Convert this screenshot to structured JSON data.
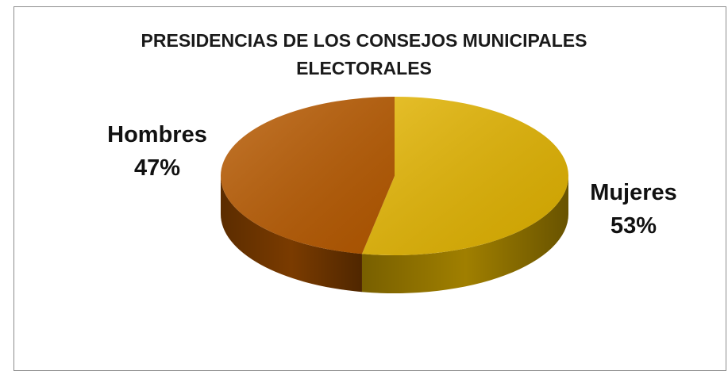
{
  "chart_data": {
    "type": "pie",
    "title_lines": [
      "PRESIDENCIAS DE LOS CONSEJOS MUNICIPALES",
      "ELECTORALES"
    ],
    "style": "3d",
    "slices": [
      {
        "name": "Mujeres",
        "value": 53,
        "label": "53%",
        "color": "#E3B400",
        "side_color": "#A07F00"
      },
      {
        "name": "Hombres",
        "value": 47,
        "label": "47%",
        "color": "#B85A00",
        "side_color": "#7A3B00"
      }
    ]
  }
}
